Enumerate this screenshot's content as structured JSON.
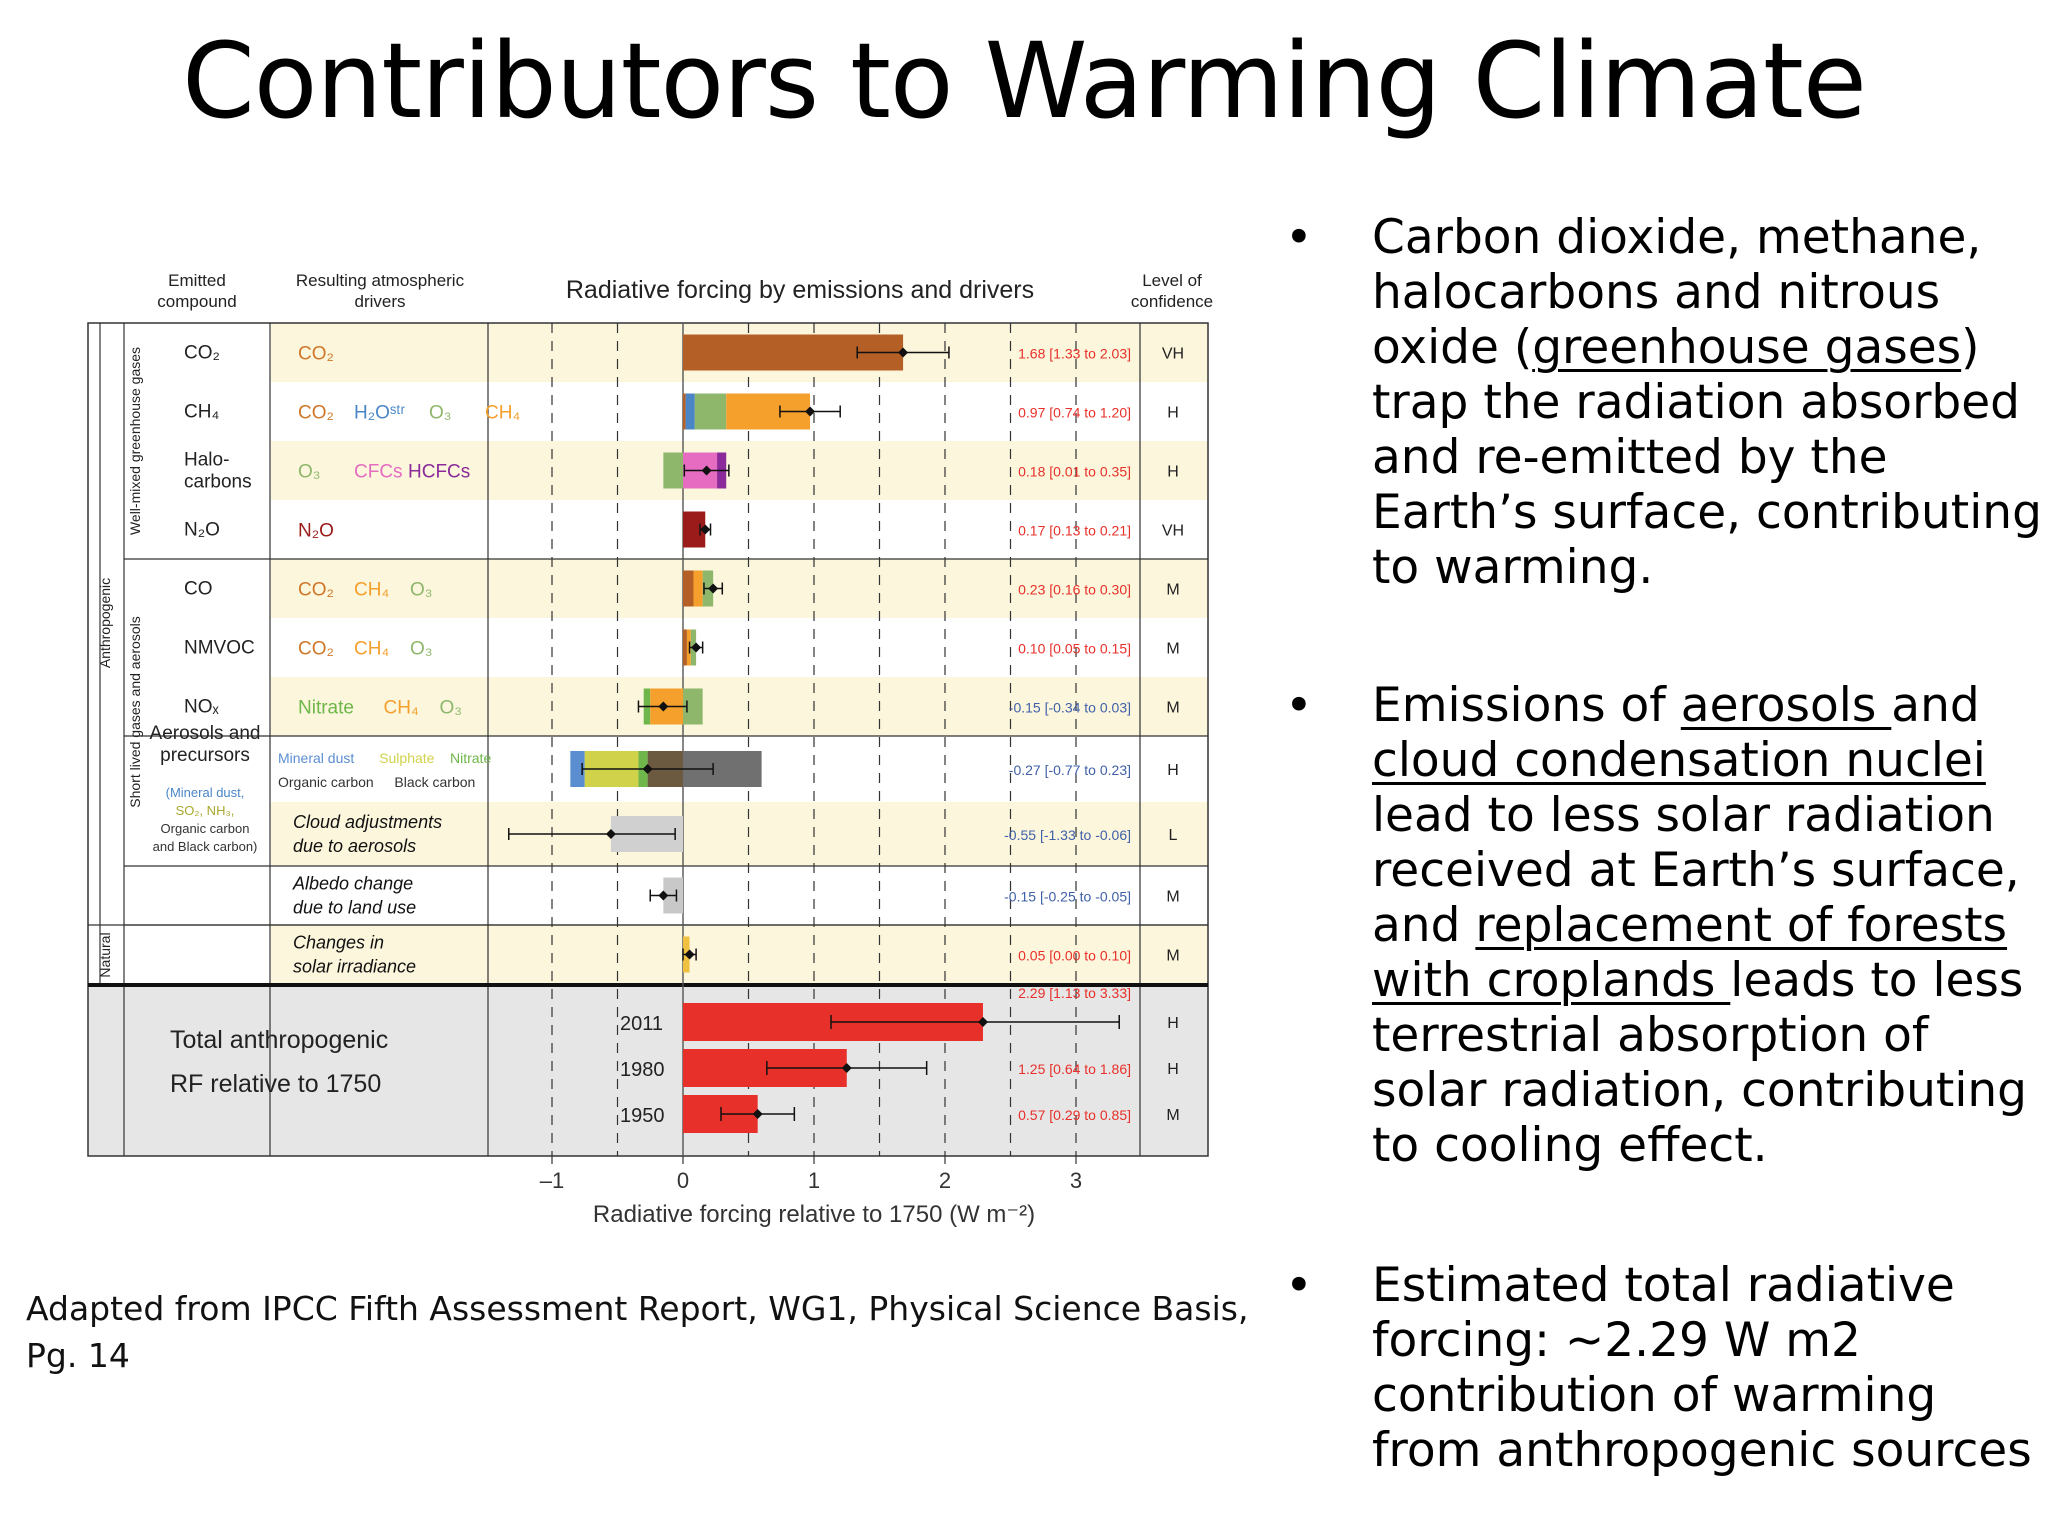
{
  "slide": {
    "title": "Contributors to Warming Climate",
    "source": {
      "line1": "Adapted from IPCC Fifth Assessment Report, WG1,  Physical Science Basis,",
      "line2": "Pg. 14"
    }
  },
  "bullets": {
    "b1": {
      "a": "Carbon dioxide, methane, halocarbons and nitrous oxide (",
      "u1": "greenhouse gases",
      "b": ") trap the radiation absorbed and re-emitted by the Earth’s surface, contributing to warming."
    },
    "b2": {
      "a": "Emissions of ",
      "u1": "aerosols ",
      "b": "and ",
      "u2": "cloud condensation nuclei",
      "c": " lead to less solar radiation received at Earth’s surface, and ",
      "u3": "replacement of forests with croplands ",
      "d": "leads to less terrestrial absorption of solar radiation, contributing to cooling effect."
    },
    "b3": {
      "a": " Estimated total radiative forcing: ~2.29 W m2 contribution of warming from anthropogenic sources"
    }
  },
  "chart_data": {
    "type": "bar",
    "title": "Radiative forcing by emissions and drivers",
    "xlabel": "Radiative forcing relative to 1750 (W m⁻²)",
    "xlim": [
      -1.5,
      3.5
    ],
    "xticks": [
      -1,
      0,
      1,
      2,
      3
    ],
    "xtick_labels": [
      "–1",
      "0",
      "1",
      "2",
      "3"
    ],
    "headers": {
      "emitted": [
        "Emitted",
        "compound"
      ],
      "drivers": [
        "Resulting atmospheric",
        "drivers"
      ],
      "confidence": [
        "Level of",
        "confidence"
      ]
    },
    "group_labels": {
      "anthropogenic": "Anthropogenic",
      "well_mixed": "Well-mixed greenhouse gases",
      "short_lived": "Short lived gases and aerosols",
      "natural": "Natural"
    },
    "colors": {
      "CO2": "#b35f26",
      "H2Ostr": "#4a86c6",
      "O3": "#8fb76c",
      "CH4": "#f5a02c",
      "CFCs": "#e56cc0",
      "HCFCs": "#8b2a9a",
      "N2O": "#9b1b1b",
      "Nitrate": "#6fb74a",
      "MineralDust": "#5b8ed0",
      "Sulphate": "#d0d24a",
      "OrganicCarbon": "#a0b040",
      "BlackCarbon": "#6b5a40",
      "Cloud": "#d0d0d0",
      "Albedo": "#c8c8c8",
      "Solar": "#f0c040",
      "Total": "#e8302a",
      "value_text": "#e8302a",
      "value_text_neg": "#4060a8"
    },
    "rows": [
      {
        "emitted": "CO₂",
        "drivers": [
          {
            "t": "CO₂",
            "c": "#d0782a"
          }
        ],
        "best": 1.68,
        "low": 1.33,
        "high": 2.03,
        "value_label": "1.68 [1.33 to 2.03]",
        "confidence": "VH",
        "segments": [
          {
            "from": 0,
            "to": 1.68,
            "color": "#b35f26"
          }
        ]
      },
      {
        "emitted": "CH₄",
        "drivers": [
          {
            "t": "CO₂",
            "c": "#d0782a"
          },
          {
            "t": "H₂Oˢᵗʳ",
            "c": "#4a86c6"
          },
          {
            "t": "O₃",
            "c": "#8fb76c"
          },
          {
            "t": "CH₄",
            "c": "#f5a02c"
          }
        ],
        "best": 0.97,
        "low": 0.74,
        "high": 1.2,
        "value_label": "0.97 [0.74 to 1.20]",
        "confidence": "H",
        "segments": [
          {
            "from": 0,
            "to": 0.02,
            "color": "#b35f26"
          },
          {
            "from": 0.02,
            "to": 0.09,
            "color": "#4a86c6"
          },
          {
            "from": 0.09,
            "to": 0.33,
            "color": "#8fb76c"
          },
          {
            "from": 0.33,
            "to": 0.97,
            "color": "#f5a02c"
          }
        ]
      },
      {
        "emitted": "Halo-\ncarbons",
        "drivers": [
          {
            "t": "O₃",
            "c": "#8fb76c"
          },
          {
            "t": "CFCs",
            "c": "#e56cc0"
          },
          {
            "t": "HCFCs",
            "c": "#8b2a9a"
          }
        ],
        "best": 0.18,
        "low": 0.01,
        "high": 0.35,
        "value_label": "0.18 [0.01 to 0.35]",
        "confidence": "H",
        "segments": [
          {
            "from": -0.15,
            "to": 0,
            "color": "#8fb76c"
          },
          {
            "from": 0,
            "to": 0.26,
            "color": "#e56cc0"
          },
          {
            "from": 0.26,
            "to": 0.33,
            "color": "#8b2a9a"
          }
        ]
      },
      {
        "emitted": "N₂O",
        "drivers": [
          {
            "t": "N₂O",
            "c": "#9b1b1b"
          }
        ],
        "best": 0.17,
        "low": 0.13,
        "high": 0.21,
        "value_label": "0.17 [0.13 to 0.21]",
        "confidence": "VH",
        "segments": [
          {
            "from": 0,
            "to": 0.17,
            "color": "#9b1b1b"
          }
        ]
      },
      {
        "emitted": "CO",
        "drivers": [
          {
            "t": "CO₂",
            "c": "#d0782a"
          },
          {
            "t": "CH₄",
            "c": "#f5a02c"
          },
          {
            "t": "O₃",
            "c": "#8fb76c"
          }
        ],
        "best": 0.23,
        "low": 0.16,
        "high": 0.3,
        "value_label": "0.23 [0.16 to 0.30]",
        "confidence": "M",
        "segments": [
          {
            "from": 0,
            "to": 0.08,
            "color": "#b35f26"
          },
          {
            "from": 0.08,
            "to": 0.15,
            "color": "#f5a02c"
          },
          {
            "from": 0.15,
            "to": 0.23,
            "color": "#8fb76c"
          }
        ]
      },
      {
        "emitted": "NMVOC",
        "drivers": [
          {
            "t": "CO₂",
            "c": "#d0782a"
          },
          {
            "t": "CH₄",
            "c": "#f5a02c"
          },
          {
            "t": "O₃",
            "c": "#8fb76c"
          }
        ],
        "best": 0.1,
        "low": 0.05,
        "high": 0.15,
        "value_label": "0.10 [0.05 to 0.15]",
        "confidence": "M",
        "segments": [
          {
            "from": 0,
            "to": 0.03,
            "color": "#b35f26"
          },
          {
            "from": 0.03,
            "to": 0.06,
            "color": "#f5a02c"
          },
          {
            "from": 0.06,
            "to": 0.1,
            "color": "#8fb76c"
          }
        ]
      },
      {
        "emitted": "NOₓ",
        "drivers": [
          {
            "t": "Nitrate",
            "c": "#6fb74a"
          },
          {
            "t": "CH₄",
            "c": "#f5a02c"
          },
          {
            "t": "O₃",
            "c": "#8fb76c"
          }
        ],
        "best": -0.15,
        "low": -0.34,
        "high": 0.03,
        "value_label": "-0.15 [-0.34 to 0.03]",
        "confidence": "M",
        "segments": [
          {
            "from": -0.3,
            "to": -0.25,
            "color": "#6fb74a"
          },
          {
            "from": -0.25,
            "to": 0,
            "color": "#f5a02c"
          },
          {
            "from": 0,
            "to": 0.15,
            "color": "#8fb76c"
          }
        ]
      },
      {
        "emitted": "Aerosols and\nprecursors",
        "drivers": [
          {
            "t": "Mineral dust",
            "c": "#5b8ed0"
          },
          {
            "t": "Sulphate",
            "c": "#d0d24a"
          },
          {
            "t": "Nitrate",
            "c": "#6fb74a"
          },
          {
            "t": "Organic carbon",
            "c": "#333"
          },
          {
            "t": "Black carbon",
            "c": "#333"
          }
        ],
        "best": -0.27,
        "low": -0.77,
        "high": 0.23,
        "value_label": "-0.27 [-0.77 to 0.23]",
        "confidence": "H",
        "segments": [
          {
            "from": -0.86,
            "to": -0.75,
            "color": "#5b8ed0"
          },
          {
            "from": -0.75,
            "to": -0.34,
            "color": "#d0d24a"
          },
          {
            "from": -0.34,
            "to": -0.27,
            "color": "#6fb74a"
          },
          {
            "from": -0.27,
            "to": 0,
            "color": "#6b5a40"
          },
          {
            "from": 0,
            "to": 0.6,
            "color": "#707070"
          }
        ]
      },
      {
        "emitted": "",
        "drivers": [
          {
            "t": "Cloud adjustments\ndue to aerosols",
            "c": "#111"
          }
        ],
        "best": -0.55,
        "low": -1.33,
        "high": -0.06,
        "value_label": "-0.55 [-1.33 to -0.06]",
        "confidence": "L",
        "segments": [
          {
            "from": -0.55,
            "to": 0,
            "color": "#d0d0d0"
          }
        ]
      },
      {
        "emitted": "",
        "drivers": [
          {
            "t": "Albedo change\ndue to land use",
            "c": "#111"
          }
        ],
        "best": -0.15,
        "low": -0.25,
        "high": -0.05,
        "value_label": "-0.15 [-0.25 to -0.05]",
        "confidence": "M",
        "segments": [
          {
            "from": -0.15,
            "to": 0,
            "color": "#c8c8c8"
          }
        ]
      },
      {
        "emitted": "",
        "drivers": [
          {
            "t": "Changes in\nsolar irradiance",
            "c": "#111"
          }
        ],
        "best": 0.05,
        "low": 0.0,
        "high": 0.1,
        "value_label": "0.05 [0.00 to 0.10]",
        "confidence": "M",
        "segments": [
          {
            "from": 0,
            "to": 0.05,
            "color": "#f0c040"
          }
        ]
      }
    ],
    "emitted_sublabels": {
      "aerosols": [
        "(Mineral dust,",
        "SO₂, NH₃,",
        "Organic carbon",
        "and Black carbon)"
      ]
    },
    "totals": {
      "label": [
        "Total anthropogenic",
        "RF relative to 1750"
      ],
      "rows": [
        {
          "year": "2011",
          "best": 2.29,
          "low": 1.13,
          "high": 3.33,
          "value_label": "2.29 [1.13 to 3.33]",
          "confidence": "H"
        },
        {
          "year": "1980",
          "best": 1.25,
          "low": 0.64,
          "high": 1.86,
          "value_label": "1.25 [0.64 to 1.86]",
          "confidence": "H"
        },
        {
          "year": "1950",
          "best": 0.57,
          "low": 0.29,
          "high": 0.85,
          "value_label": "0.57 [0.29 to 0.85]",
          "confidence": "M"
        }
      ]
    }
  }
}
